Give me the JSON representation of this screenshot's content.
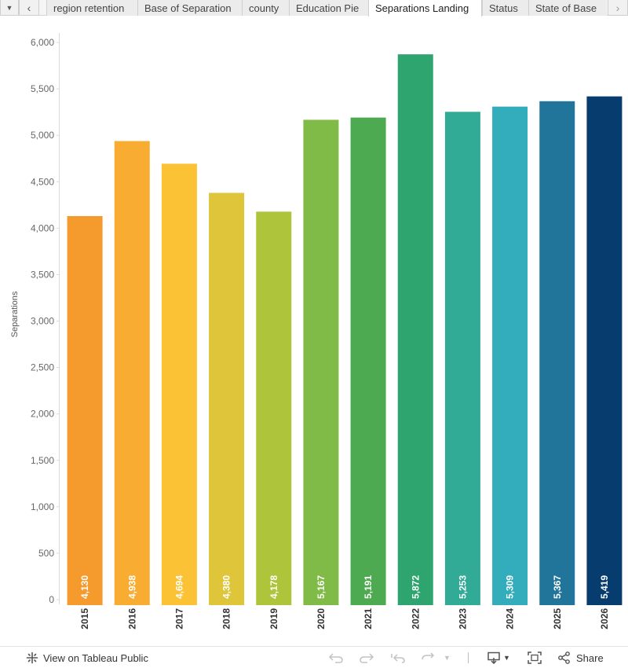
{
  "tabs": {
    "dropdown_icon": "chevron-down-icon",
    "prev_icon": "chevron-left-icon",
    "next_icon": "chevron-right-icon",
    "items": [
      {
        "label": "region retention",
        "active": false
      },
      {
        "label": "Base of Separation",
        "active": false
      },
      {
        "label": "county",
        "active": false
      },
      {
        "label": "Education Pie",
        "active": false
      },
      {
        "label": "Separations Landing",
        "active": true
      },
      {
        "label": "Status",
        "active": false
      },
      {
        "label": "State of Base",
        "active": false
      }
    ]
  },
  "chart_data": {
    "type": "bar",
    "title": "",
    "xlabel": "",
    "ylabel": "Separations",
    "ylim": [
      0,
      6000
    ],
    "yticks": [
      "0",
      "500",
      "1,000",
      "1,500",
      "2,000",
      "2,500",
      "3,000",
      "3,500",
      "4,000",
      "4,500",
      "5,000",
      "5,500",
      "6,000"
    ],
    "ytick_values": [
      0,
      500,
      1000,
      1500,
      2000,
      2500,
      3000,
      3500,
      4000,
      4500,
      5000,
      5500,
      6000
    ],
    "categories": [
      "2015",
      "2016",
      "2017",
      "2018",
      "2019",
      "2020",
      "2021",
      "2022",
      "2023",
      "2024",
      "2025",
      "2026"
    ],
    "values": [
      4130,
      4938,
      4694,
      4380,
      4178,
      5167,
      5191,
      5872,
      5253,
      5309,
      5367,
      5419
    ],
    "data_labels": [
      "4,130",
      "4,938",
      "4,694",
      "4,380",
      "4,178",
      "5,167",
      "5,191",
      "5,872",
      "5,253",
      "5,309",
      "5,367",
      "5,419"
    ],
    "colors": [
      "#F59A2C",
      "#F9AC32",
      "#FCC236",
      "#DEC53A",
      "#AEC43A",
      "#80BA47",
      "#4DAA50",
      "#2EA56E",
      "#31AB96",
      "#33ACBB",
      "#21749A",
      "#073C6F"
    ],
    "grid": false,
    "legend": "none"
  },
  "toolbar": {
    "view_label": "View on Tableau Public",
    "view_icon": "tableau-logo-icon",
    "undo_icon": "undo-icon",
    "redo_icon": "redo-icon",
    "revert_icon": "revert-icon",
    "refresh_icon": "refresh-icon",
    "download_icon": "download-icon",
    "fullscreen_icon": "fullscreen-icon",
    "share_label": "Share",
    "share_icon": "share-icon"
  }
}
